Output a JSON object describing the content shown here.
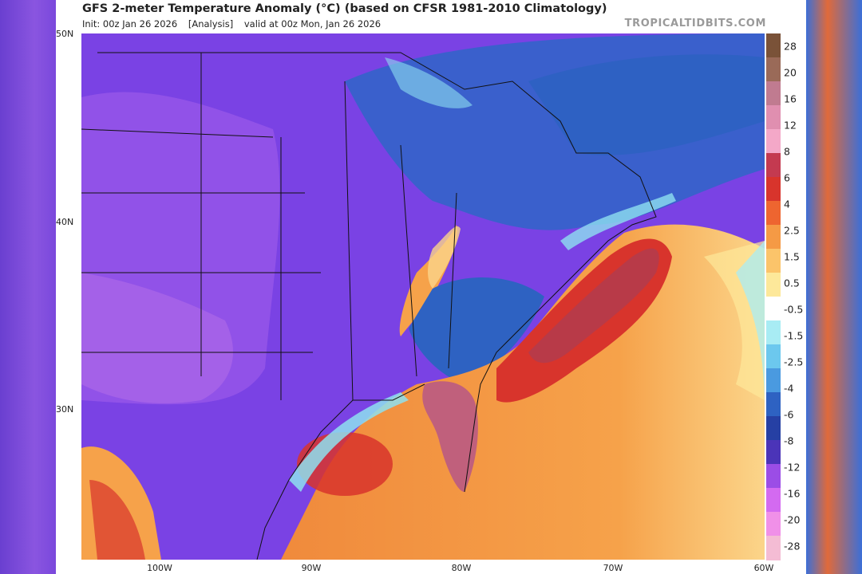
{
  "header": {
    "title": "GFS 2-meter Temperature Anomaly (°C) (based on CFSR 1981-2010 Climatology)",
    "init": "Init: 00z Jan 26 2026",
    "analysis": "[Analysis]",
    "valid": "valid at 00z Mon, Jan 26 2026",
    "credit": "TROPICALTIDBITS.COM"
  },
  "axes": {
    "lat_labels": [
      "50N",
      "40N",
      "30N"
    ],
    "lon_labels": [
      "100W",
      "90W",
      "80W",
      "70W",
      "60W"
    ]
  },
  "colorbar": {
    "labels": [
      "28",
      "20",
      "16",
      "12",
      "8",
      "6",
      "4",
      "2.5",
      "1.5",
      "0.5",
      "-0.5",
      "-1.5",
      "-2.5",
      "-4",
      "-6",
      "-8",
      "-12",
      "-16",
      "-20",
      "-28"
    ],
    "colors": [
      "#7a5238",
      "#9a6a58",
      "#c07b90",
      "#e08fb0",
      "#f4a8c8",
      "#c43a50",
      "#d8342c",
      "#ee6530",
      "#f59a45",
      "#fbc46a",
      "#fde89a",
      "#ffffff",
      "#a8ecf4",
      "#6cc8ee",
      "#4a9ae0",
      "#2e62c2",
      "#2640a4",
      "#4b34b8",
      "#9b4de6",
      "#d36af0",
      "#f090e8",
      "#f4bcd4"
    ]
  },
  "map": {
    "colors": {
      "land_purple": "#7a42e4",
      "land_violet": "#9a58ea",
      "cold_blue": "#3a60cc",
      "ocean_warm": "#f08a3c",
      "ocean_hot": "#d83a2a",
      "ocean_deep_red": "#b83a48",
      "ocean_pale": "#fbd58a",
      "coastal_cyan": "#8ee0f0",
      "borders": "#111111"
    }
  }
}
